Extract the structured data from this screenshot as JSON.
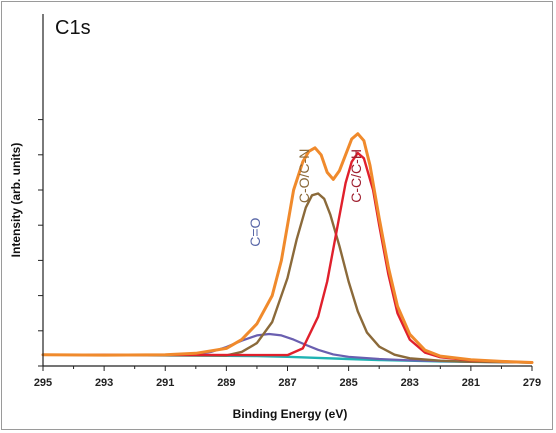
{
  "chart_data": {
    "type": "line",
    "title": "C1s",
    "xlabel": "Binding Energy (eV)",
    "ylabel": "Intensity (arb. units)",
    "x_reversed": true,
    "xlim": [
      295,
      279
    ],
    "ylim": [
      0,
      100
    ],
    "x_ticks": [
      295,
      293,
      291,
      289,
      287,
      285,
      283,
      281,
      279
    ],
    "y_tick_values": [
      0,
      10,
      20,
      30,
      40,
      50,
      60,
      70
    ],
    "grid": false,
    "colors": {
      "envelope": "#f08a2c",
      "raw": "#6e6ea8",
      "c_c": "#e0202c",
      "c_o": "#8b6a3a",
      "c_double_o": "#6a5fb0",
      "background": "#1fb3b3"
    },
    "peak_labels": [
      {
        "text": "C=O",
        "x": 287.9,
        "y": 38,
        "color": "#5a68a8"
      },
      {
        "text": "C-O/C-N",
        "x": 286.3,
        "y": 54,
        "color": "#8b6a3a"
      },
      {
        "text": "C-C/C-H",
        "x": 284.6,
        "y": 54,
        "color": "#a02030"
      }
    ],
    "series": [
      {
        "key": "background",
        "x": [
          295,
          293,
          291,
          289,
          288,
          287,
          286,
          285,
          284,
          283,
          282,
          281,
          280,
          279
        ],
        "values": [
          3.2,
          3.1,
          3.0,
          2.9,
          2.8,
          2.6,
          2.3,
          2.0,
          1.7,
          1.5,
          1.3,
          1.2,
          1.1,
          1.0
        ]
      },
      {
        "key": "c_double_o",
        "x": [
          295,
          291,
          290,
          289.5,
          289,
          288.5,
          288,
          287.6,
          287.2,
          286.8,
          286.4,
          286,
          285.5,
          285,
          284,
          283,
          281,
          279
        ],
        "values": [
          3.2,
          3.0,
          3.3,
          4.0,
          5.4,
          7.2,
          8.7,
          9.1,
          8.7,
          7.5,
          6.0,
          4.6,
          3.3,
          2.6,
          2.0,
          1.6,
          1.2,
          1.0
        ]
      },
      {
        "key": "c_o",
        "x": [
          295,
          289,
          288.5,
          288,
          287.5,
          287,
          286.7,
          286.4,
          286.2,
          286,
          285.8,
          285.6,
          285.3,
          285,
          284.7,
          284.4,
          284,
          283.5,
          283,
          282,
          281,
          279
        ],
        "values": [
          3.2,
          3.0,
          4.0,
          6.5,
          12.5,
          25.0,
          36.0,
          45.0,
          48.5,
          49.0,
          47.5,
          43.0,
          34.0,
          24.0,
          15.5,
          9.5,
          5.5,
          3.2,
          2.2,
          1.5,
          1.2,
          1.0
        ]
      },
      {
        "key": "c_c",
        "x": [
          295,
          287,
          286.5,
          286,
          285.7,
          285.4,
          285.1,
          284.9,
          284.7,
          284.5,
          284.2,
          284,
          283.7,
          283.4,
          283,
          282.5,
          282,
          281,
          279
        ],
        "values": [
          3.2,
          3.1,
          5.0,
          14.0,
          24.0,
          38.0,
          52.0,
          58.0,
          60.5,
          59.0,
          50.0,
          40.0,
          26.0,
          15.0,
          7.5,
          3.8,
          2.5,
          1.6,
          1.0
        ]
      },
      {
        "key": "envelope",
        "x": [
          295,
          293,
          291,
          290,
          289,
          288.5,
          288,
          287.5,
          287.2,
          287,
          286.8,
          286.5,
          286.3,
          286.1,
          285.9,
          285.7,
          285.5,
          285.3,
          285.1,
          284.9,
          284.7,
          284.5,
          284.3,
          284,
          283.7,
          283.4,
          283,
          282.5,
          282,
          281,
          280,
          279
        ],
        "values": [
          3.2,
          3.1,
          3.2,
          3.6,
          5.0,
          7.5,
          12.0,
          20.0,
          30.0,
          40.0,
          50.0,
          58.0,
          61.0,
          62.0,
          60.0,
          55.0,
          53.0,
          55.5,
          60.0,
          64.5,
          66.0,
          64.0,
          57.0,
          42.0,
          28.0,
          17.0,
          9.0,
          4.5,
          2.8,
          1.8,
          1.3,
          1.0
        ]
      }
    ]
  }
}
